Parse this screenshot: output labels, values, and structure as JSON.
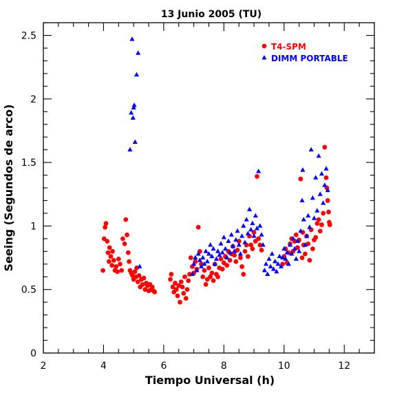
{
  "chart_data": {
    "type": "scatter",
    "title": "13 Junio 2005 (TU)",
    "xlabel": "Tiempo Universal (h)",
    "ylabel": "Seeing (Segundos de arco)",
    "xlim": [
      2,
      13
    ],
    "ylim": [
      0,
      2.6
    ],
    "xticks": [
      "2",
      "4",
      "6",
      "8",
      "10",
      "12"
    ],
    "yticks": [
      "0",
      "0.5",
      "1",
      "1.5",
      "2",
      "2.5"
    ],
    "legend_position": "top-right",
    "series": [
      {
        "name": "T4-SPM",
        "marker": "circle",
        "color": "#ff0000",
        "points": [
          [
            3.98,
            0.65
          ],
          [
            4.02,
            0.9
          ],
          [
            4.05,
            0.99
          ],
          [
            4.08,
            1.02
          ],
          [
            4.12,
            0.88
          ],
          [
            4.15,
            0.79
          ],
          [
            4.18,
            0.72
          ],
          [
            4.2,
            0.83
          ],
          [
            4.24,
            0.76
          ],
          [
            4.28,
            0.69
          ],
          [
            4.3,
            0.8
          ],
          [
            4.34,
            0.73
          ],
          [
            4.38,
            0.65
          ],
          [
            4.42,
            0.68
          ],
          [
            4.46,
            0.64
          ],
          [
            4.5,
            0.74
          ],
          [
            4.55,
            0.7
          ],
          [
            4.6,
            0.65
          ],
          [
            4.64,
            0.9
          ],
          [
            4.7,
            0.86
          ],
          [
            4.74,
            1.05
          ],
          [
            4.78,
            0.93
          ],
          [
            4.82,
            0.79
          ],
          [
            4.85,
            0.72
          ],
          [
            4.88,
            0.65
          ],
          [
            4.92,
            0.63
          ],
          [
            4.96,
            0.61
          ],
          [
            5.0,
            0.58
          ],
          [
            5.04,
            0.64
          ],
          [
            5.08,
            0.6
          ],
          [
            5.1,
            0.67
          ],
          [
            5.14,
            0.56
          ],
          [
            5.18,
            0.61
          ],
          [
            5.22,
            0.52
          ],
          [
            5.26,
            0.58
          ],
          [
            5.3,
            0.54
          ],
          [
            5.34,
            0.59
          ],
          [
            5.38,
            0.5
          ],
          [
            5.42,
            0.55
          ],
          [
            5.46,
            0.53
          ],
          [
            5.5,
            0.49
          ],
          [
            5.54,
            0.54
          ],
          [
            5.58,
            0.5
          ],
          [
            5.62,
            0.52
          ],
          [
            5.66,
            0.49
          ],
          [
            5.7,
            0.48
          ],
          [
            6.22,
            0.58
          ],
          [
            6.25,
            0.62
          ],
          [
            6.3,
            0.52
          ],
          [
            6.34,
            0.48
          ],
          [
            6.38,
            0.55
          ],
          [
            6.42,
            0.5
          ],
          [
            6.46,
            0.45
          ],
          [
            6.5,
            0.53
          ],
          [
            6.54,
            0.4
          ],
          [
            6.58,
            0.56
          ],
          [
            6.62,
            0.52
          ],
          [
            6.66,
            0.47
          ],
          [
            6.7,
            0.6
          ],
          [
            6.74,
            0.43
          ],
          [
            6.78,
            0.5
          ],
          [
            6.82,
            0.57
          ],
          [
            6.86,
            0.62
          ],
          [
            6.9,
            0.75
          ],
          [
            6.95,
            0.68
          ],
          [
            7.0,
            0.63
          ],
          [
            7.05,
            0.72
          ],
          [
            7.1,
            0.66
          ],
          [
            7.15,
            0.99
          ],
          [
            7.2,
            0.8
          ],
          [
            7.25,
            0.7
          ],
          [
            7.3,
            0.6
          ],
          [
            7.35,
            0.65
          ],
          [
            7.4,
            0.54
          ],
          [
            7.45,
            0.58
          ],
          [
            7.5,
            0.67
          ],
          [
            7.55,
            0.6
          ],
          [
            7.6,
            0.63
          ],
          [
            7.65,
            0.57
          ],
          [
            7.7,
            0.7
          ],
          [
            7.75,
            0.62
          ],
          [
            7.8,
            0.6
          ],
          [
            7.85,
            0.67
          ],
          [
            7.9,
            0.74
          ],
          [
            7.95,
            0.66
          ],
          [
            8.0,
            0.71
          ],
          [
            8.05,
            0.76
          ],
          [
            8.1,
            0.69
          ],
          [
            8.15,
            0.8
          ],
          [
            8.2,
            0.73
          ],
          [
            8.25,
            0.78
          ],
          [
            8.3,
            0.84
          ],
          [
            8.35,
            0.77
          ],
          [
            8.4,
            0.72
          ],
          [
            8.45,
            0.81
          ],
          [
            8.5,
            0.88
          ],
          [
            8.55,
            0.75
          ],
          [
            8.6,
            0.68
          ],
          [
            8.65,
            0.62
          ],
          [
            8.7,
            0.8
          ],
          [
            8.75,
            0.85
          ],
          [
            8.8,
            0.76
          ],
          [
            8.85,
            0.92
          ],
          [
            8.9,
            0.85
          ],
          [
            8.95,
            0.82
          ],
          [
            9.0,
            0.95
          ],
          [
            9.05,
            0.88
          ],
          [
            9.1,
            1.39
          ],
          [
            9.15,
            0.9
          ],
          [
            9.2,
            0.85
          ],
          [
            9.25,
            0.81
          ],
          [
            9.95,
            0.7
          ],
          [
            10.0,
            0.76
          ],
          [
            10.05,
            0.82
          ],
          [
            10.1,
            0.71
          ],
          [
            10.15,
            0.79
          ],
          [
            10.2,
            0.86
          ],
          [
            10.25,
            0.9
          ],
          [
            10.3,
            0.8
          ],
          [
            10.35,
            0.88
          ],
          [
            10.4,
            0.93
          ],
          [
            10.45,
            0.83
          ],
          [
            10.5,
            0.89
          ],
          [
            10.55,
            1.37
          ],
          [
            10.6,
            0.75
          ],
          [
            10.62,
            0.95
          ],
          [
            10.65,
            0.85
          ],
          [
            10.7,
            0.78
          ],
          [
            10.75,
            0.92
          ],
          [
            10.8,
            0.86
          ],
          [
            10.85,
            0.73
          ],
          [
            10.9,
            0.97
          ],
          [
            10.95,
            0.82
          ],
          [
            11.0,
            0.89
          ],
          [
            11.05,
            0.91
          ],
          [
            11.1,
            1.02
          ],
          [
            11.15,
            1.05
          ],
          [
            11.2,
            0.96
          ],
          [
            11.25,
            1.01
          ],
          [
            11.3,
            1.1
          ],
          [
            11.35,
            1.62
          ],
          [
            11.4,
            1.38
          ],
          [
            11.42,
            1.3
          ],
          [
            11.45,
            1.2
          ],
          [
            11.48,
            1.11
          ],
          [
            11.5,
            1.03
          ],
          [
            11.52,
            1.01
          ]
        ]
      },
      {
        "name": "DIMM PORTABLE",
        "marker": "triangle",
        "color": "#0000ff",
        "points": [
          [
            4.88,
            1.6
          ],
          [
            4.92,
            1.89
          ],
          [
            4.95,
            2.47
          ],
          [
            4.98,
            1.85
          ],
          [
            5.0,
            1.93
          ],
          [
            5.02,
            1.95
          ],
          [
            5.05,
            1.66
          ],
          [
            5.1,
            2.19
          ],
          [
            5.15,
            2.36
          ],
          [
            5.2,
            0.68
          ],
          [
            6.95,
            0.62
          ],
          [
            7.0,
            0.7
          ],
          [
            7.05,
            0.75
          ],
          [
            7.1,
            0.65
          ],
          [
            7.15,
            0.78
          ],
          [
            7.2,
            0.73
          ],
          [
            7.25,
            0.68
          ],
          [
            7.3,
            0.75
          ],
          [
            7.35,
            0.7
          ],
          [
            7.4,
            0.8
          ],
          [
            7.45,
            0.72
          ],
          [
            7.5,
            0.78
          ],
          [
            7.55,
            0.85
          ],
          [
            7.6,
            0.76
          ],
          [
            7.65,
            0.82
          ],
          [
            7.7,
            0.7
          ],
          [
            7.75,
            0.74
          ],
          [
            7.8,
            0.8
          ],
          [
            7.85,
            0.77
          ],
          [
            7.9,
            0.86
          ],
          [
            7.95,
            0.79
          ],
          [
            8.0,
            0.91
          ],
          [
            8.05,
            0.82
          ],
          [
            8.1,
            0.75
          ],
          [
            8.15,
            0.88
          ],
          [
            8.2,
            0.79
          ],
          [
            8.25,
            0.93
          ],
          [
            8.3,
            0.84
          ],
          [
            8.35,
            0.8
          ],
          [
            8.4,
            0.89
          ],
          [
            8.45,
            0.96
          ],
          [
            8.5,
            0.85
          ],
          [
            8.55,
            0.78
          ],
          [
            8.6,
            0.92
          ],
          [
            8.65,
            1.0
          ],
          [
            8.7,
            0.87
          ],
          [
            8.75,
            1.05
          ],
          [
            8.8,
            0.94
          ],
          [
            8.85,
            1.13
          ],
          [
            8.9,
            0.97
          ],
          [
            8.95,
            1.02
          ],
          [
            9.0,
            0.92
          ],
          [
            9.05,
            1.08
          ],
          [
            9.1,
            0.98
          ],
          [
            9.15,
            1.43
          ],
          [
            9.2,
            1.0
          ],
          [
            9.25,
            0.93
          ],
          [
            9.3,
            0.85
          ],
          [
            9.35,
            0.65
          ],
          [
            9.4,
            0.7
          ],
          [
            9.45,
            0.62
          ],
          [
            9.5,
            0.74
          ],
          [
            9.55,
            0.68
          ],
          [
            9.6,
            0.78
          ],
          [
            9.65,
            0.66
          ],
          [
            9.7,
            0.72
          ],
          [
            9.75,
            0.64
          ],
          [
            9.8,
            0.7
          ],
          [
            9.85,
            0.76
          ],
          [
            9.9,
            0.68
          ],
          [
            9.95,
            0.75
          ],
          [
            10.0,
            0.82
          ],
          [
            10.05,
            0.74
          ],
          [
            10.1,
            0.79
          ],
          [
            10.15,
            0.7
          ],
          [
            10.2,
            0.85
          ],
          [
            10.25,
            0.78
          ],
          [
            10.3,
            0.9
          ],
          [
            10.35,
            0.82
          ],
          [
            10.4,
            0.74
          ],
          [
            10.45,
            0.88
          ],
          [
            10.5,
            0.8
          ],
          [
            10.55,
            0.96
          ],
          [
            10.6,
            1.2
          ],
          [
            10.62,
            1.44
          ],
          [
            10.65,
            1.05
          ],
          [
            10.7,
            0.85
          ],
          [
            10.75,
            0.92
          ],
          [
            10.8,
            1.08
          ],
          [
            10.85,
            0.99
          ],
          [
            10.9,
            1.6
          ],
          [
            10.95,
            1.22
          ],
          [
            11.0,
            1.06
          ],
          [
            11.05,
            1.38
          ],
          [
            11.1,
            1.12
          ],
          [
            11.15,
            1.55
          ],
          [
            11.2,
            1.25
          ],
          [
            11.25,
            1.41
          ],
          [
            11.3,
            1.18
          ],
          [
            11.35,
            1.32
          ],
          [
            11.4,
            1.45
          ],
          [
            11.45,
            1.28
          ]
        ]
      }
    ]
  }
}
